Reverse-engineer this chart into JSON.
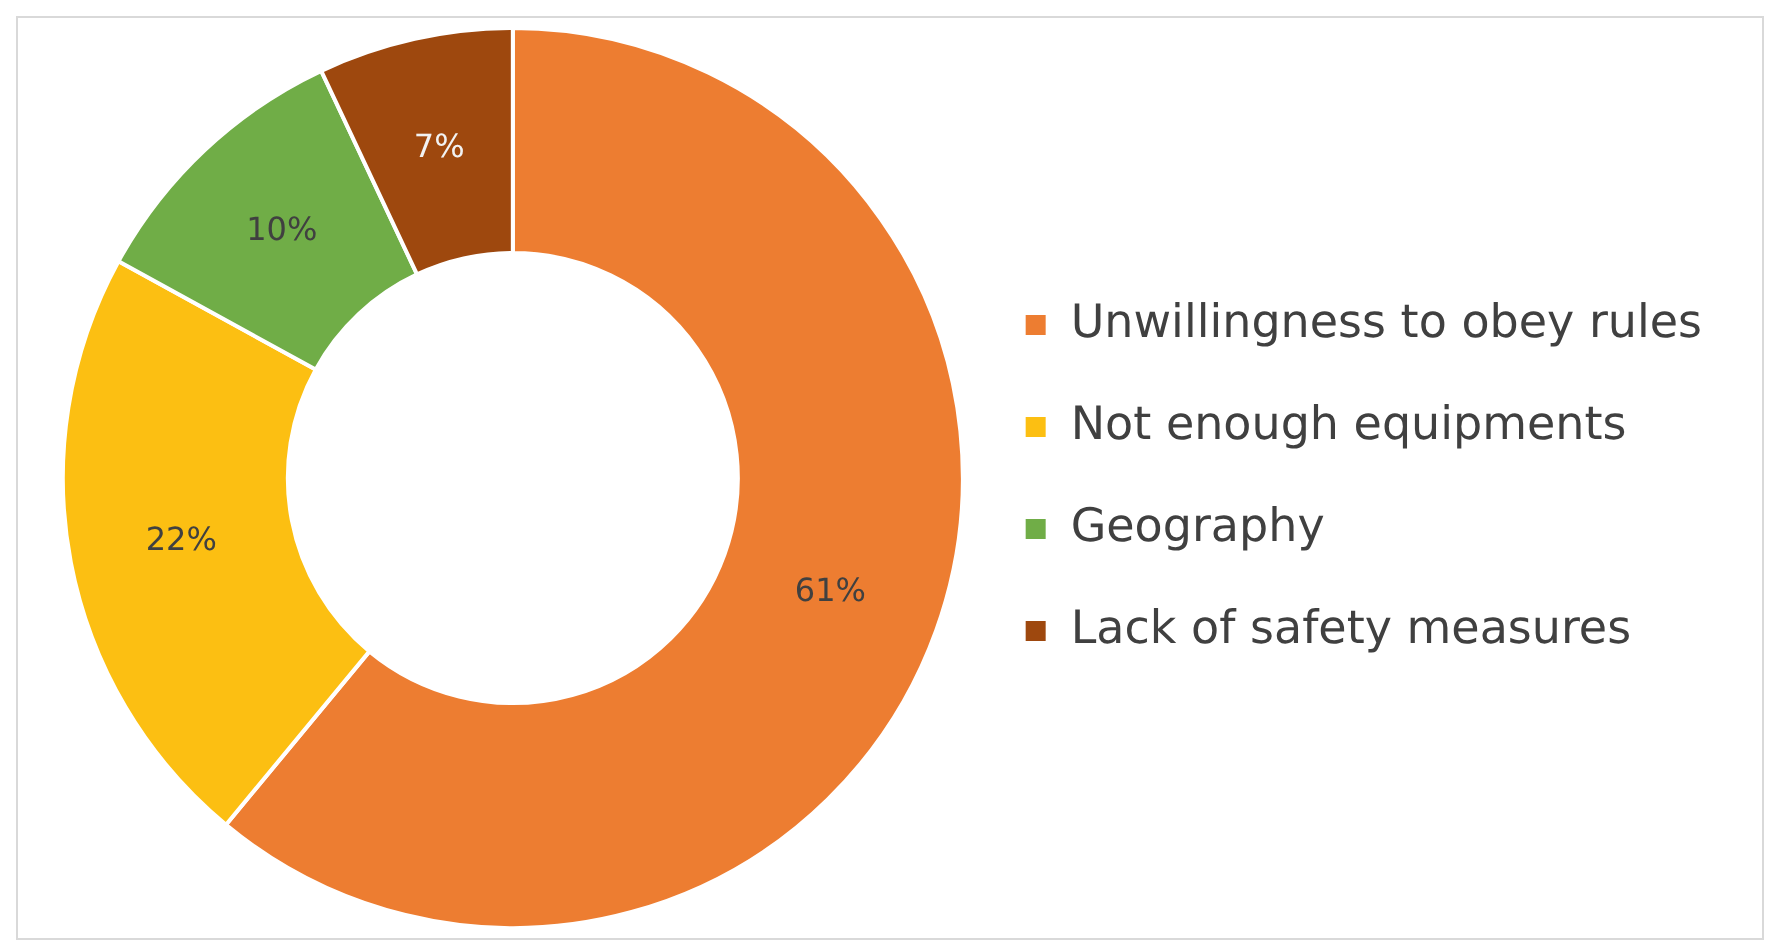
{
  "chart_data": {
    "type": "donut",
    "categories": [
      "Unwillingness to obey rules",
      "Not enough equipments",
      "Geography",
      "Lack of safety measures"
    ],
    "values": [
      61,
      22,
      10,
      7
    ],
    "colors": [
      "#ed7d31",
      "#fcbf12",
      "#70ad47",
      "#9e480e"
    ],
    "value_labels": [
      "61%",
      "22%",
      "10%",
      "7%"
    ],
    "legend": "right"
  }
}
